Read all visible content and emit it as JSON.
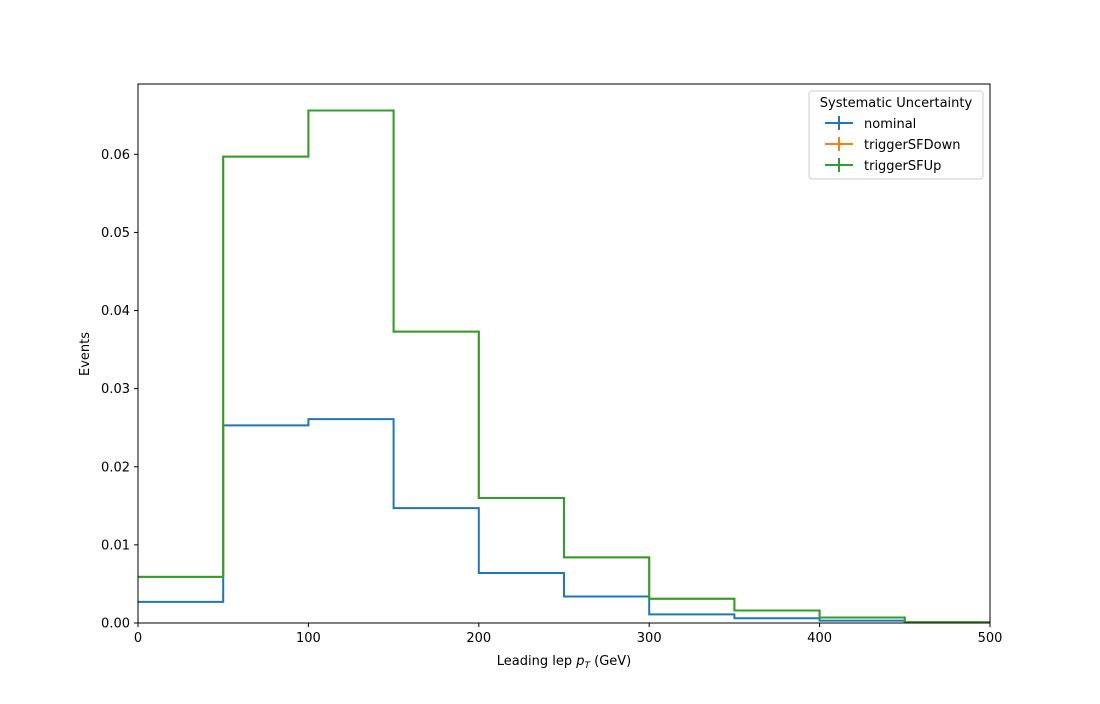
{
  "chart_data": {
    "type": "step",
    "title": "",
    "xlabel": {
      "prefix": "Leading lep ",
      "symbol": "p",
      "subscript": "T",
      "suffix": " (GeV)"
    },
    "ylabel": "Events",
    "xlim": [
      0,
      500
    ],
    "ylim": [
      0,
      0.069
    ],
    "x_ticks": [
      "0",
      "100",
      "200",
      "300",
      "400",
      "500"
    ],
    "y_ticks": [
      "0.00",
      "0.01",
      "0.02",
      "0.03",
      "0.04",
      "0.05",
      "0.06"
    ],
    "grid": false,
    "bin_edges": [
      0,
      50,
      100,
      150,
      200,
      250,
      300,
      350,
      400,
      450,
      500
    ],
    "legend": {
      "title": "Systematic Uncertainty",
      "placement": "top-right"
    },
    "series": [
      {
        "name": "nominal",
        "color": "#1f77b4",
        "values": [
          0.0027,
          0.0253,
          0.0261,
          0.0147,
          0.0064,
          0.0034,
          0.0011,
          0.0006,
          0.0003,
          0.0001
        ]
      },
      {
        "name": "triggerSFDown",
        "color": "#ff7f0e",
        "values": [
          0.0059,
          0.0597,
          0.0656,
          0.0373,
          0.016,
          0.0084,
          0.0031,
          0.0016,
          0.0007,
          0.0001
        ]
      },
      {
        "name": "triggerSFUp",
        "color": "#2ca02c",
        "values": [
          0.0059,
          0.0597,
          0.0656,
          0.0373,
          0.016,
          0.0084,
          0.0031,
          0.0016,
          0.0007,
          0.0001
        ]
      }
    ]
  }
}
